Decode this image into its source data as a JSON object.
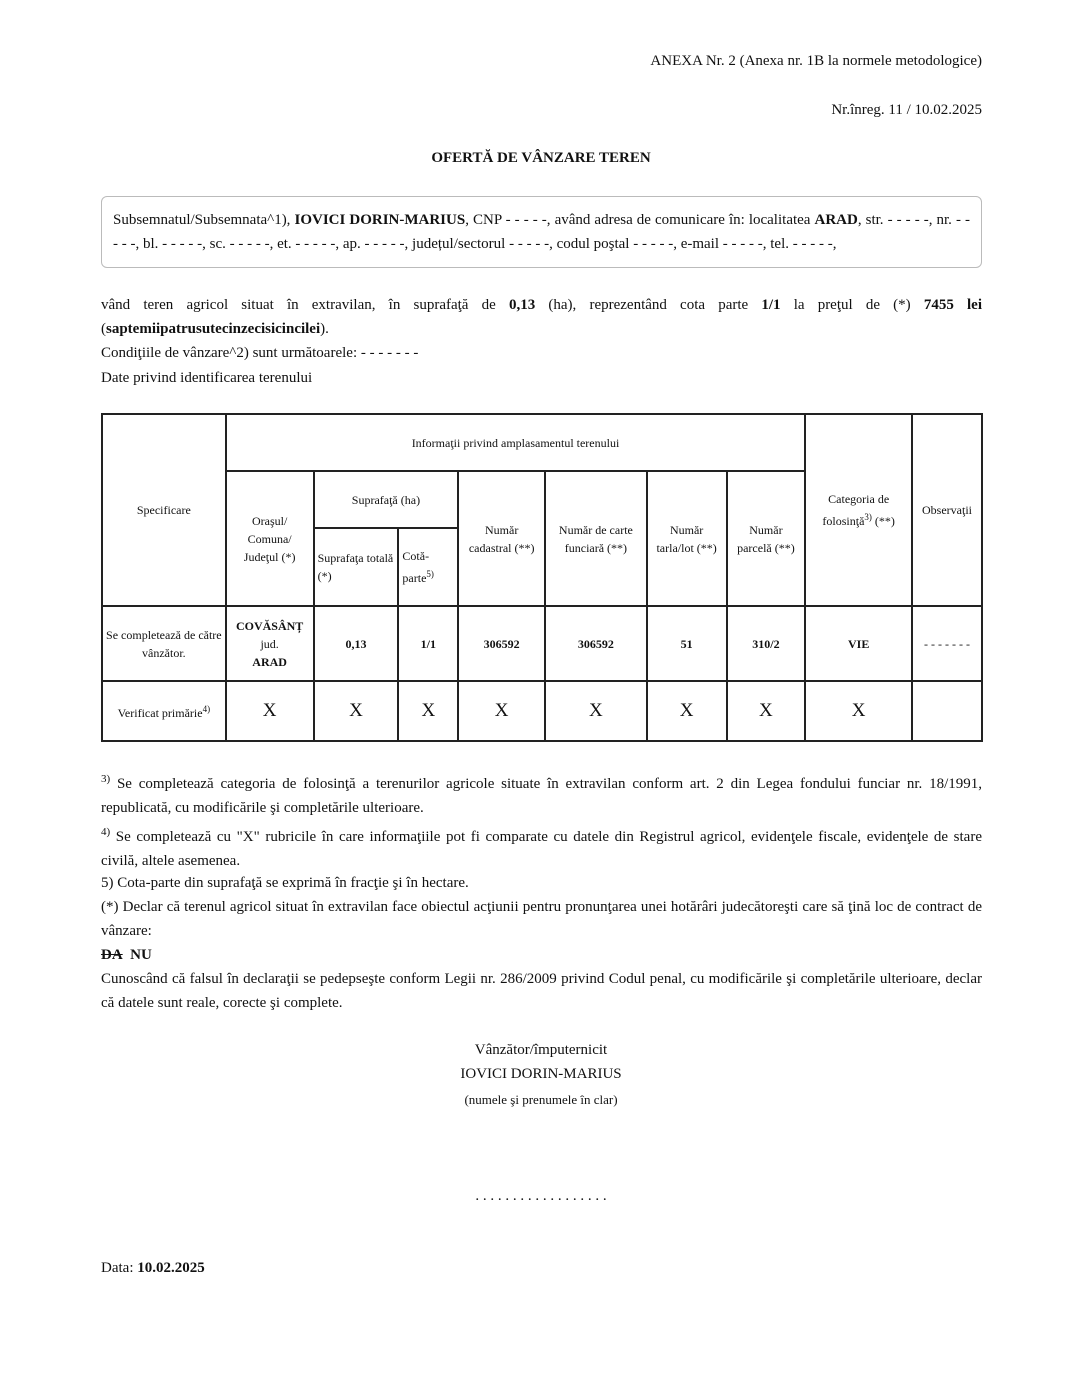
{
  "header": {
    "annex": "ANEXA Nr. 2 (Anexa nr. 1B la normele metodologice)",
    "registration": "Nr.înreg. 11 / 10.02.2025",
    "title": "OFERTĂ DE VÂNZARE TEREN"
  },
  "seller_box": {
    "p1": "Subsemnatul/Subsemnata^1), ",
    "name": "IOVICI DORIN-MARIUS",
    "p2": ", CNP - - - - -, având adresa de comunicare în: localitatea ",
    "locality": "ARAD",
    "p3": ", str. - - - - -, nr. - - - - -, bl. - - - - -, sc. - - - - -, et. - - - - -, ap. - - - - -, județul/sectorul - - - - -, codul poştal - - - - -, e-mail - - - - -, tel. - - - - -,"
  },
  "offer": {
    "p1": "vând teren agricol situat în extravilan, în suprafaţă de ",
    "area": "0,13",
    "p2": " (ha), reprezentând cota parte ",
    "share": "1/1",
    "p3": " la preţul de (*) ",
    "price": "7455 lei",
    "p4": " (",
    "price_words": "saptemiipatrusutecinzecisicincilei",
    "p5": ").",
    "conditions": "Condiţiile de vânzare^2) sunt următoarele: - - - - - - -",
    "identification": "Date privind identificarea terenului"
  },
  "table": {
    "h_spec": "Specificare",
    "h_info": "Informaţii privind amplasamentul terenului",
    "h_oras": "Oraşul/ Comuna/ Judeţul (*)",
    "h_supr": "Suprafaţă (ha)",
    "h_supr_tot": "Suprafaţa totală (*)",
    "h_cota": "Cotă-parte",
    "h_cota_sup": "5)",
    "h_cad": "Număr cadastral (**)",
    "h_cf": "Număr de carte funciară (**)",
    "h_tarla": "Număr tarla/lot (**)",
    "h_parc": "Număr parcelă (**)",
    "h_cat": "Categoria de folosinţă",
    "h_cat_sup": "3)",
    "h_cat_suf": " (**)",
    "h_obs": "Observaţii",
    "row1": {
      "label": "Se completează de către vânzător.",
      "oras": "COVĂSÂNȚ",
      "jud": "jud.",
      "judet": "ARAD",
      "supr": "0,13",
      "cota": "1/1",
      "cad": "306592",
      "cf": "306592",
      "tarla": "51",
      "parc": "310/2",
      "cat": "VIE",
      "obs": "- - - - - - -"
    },
    "row2": {
      "label": "Verificat primărie",
      "label_sup": "4)",
      "marks": [
        "X",
        "X",
        "X",
        "X",
        "X",
        "X",
        "X",
        "X"
      ]
    }
  },
  "footnotes": {
    "f3_sup": "3)",
    "f3": " Se completează categoria de folosinţă a terenurilor agricole situate în extravilan conform art. 2 din Legea fondului funciar nr. 18/1991, republicată, cu modificările şi completările ulterioare.",
    "f4_sup": "4)",
    "f4": " Se completează cu \"X\" rubricile în care informaţiile pot fi comparate cu datele din Registrul agricol, evidenţele fiscale, evidenţele de stare civilă, altele asemenea.",
    "f5": "5) Cota-parte din suprafaţă se exprimă în fracţie şi în hectare.",
    "decl": "(*) Declar că terenul agricol situat în extravilan face obiectul acţiunii pentru pronunţarea unei hotărâri judecătoreşti care să ţină loc de contract de vânzare:",
    "da": "DA",
    "nu": "NU",
    "penal": "Cunoscând că falsul în declaraţii se pedepseşte conform Legii nr. 286/2009 privind Codul penal, cu modificările şi completările ulterioare, declar că datele sunt reale, corecte şi complete."
  },
  "signature": {
    "role": "Vânzător/împuternicit",
    "name": "IOVICI DORIN-MARIUS",
    "hint": "(numele şi prenumele în clar)",
    "line": ". . . . . . . . . . . . . . . . . ."
  },
  "date": {
    "label": "Data: ",
    "value": "10.02.2025"
  }
}
